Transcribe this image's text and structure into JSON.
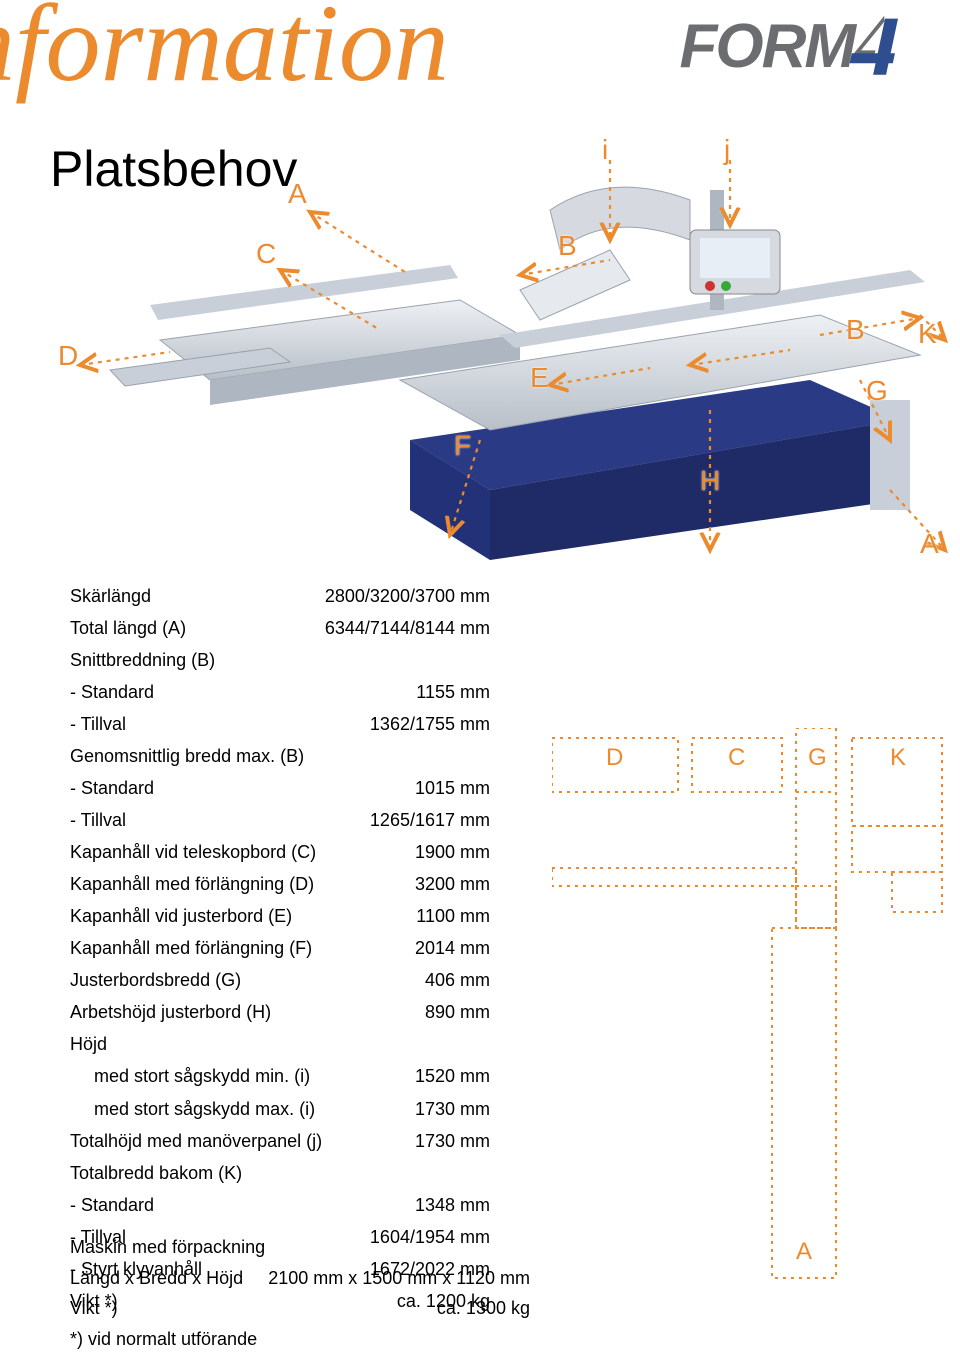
{
  "colors": {
    "accent": "#ec8a2e",
    "logo_gray": "#6b6d70",
    "logo_blue": "#2e4e8f",
    "machine_blue": "#2a3a85",
    "machine_silver": "#d6dae0"
  },
  "header": {
    "script_title": "nformation",
    "subtitle": "Platsbehov",
    "logo_text": "FORM"
  },
  "diagram_labels": {
    "A_top": "A",
    "B_top": "B",
    "C": "C",
    "D": "D",
    "E": "E",
    "F": "F",
    "G": "G",
    "H": "H",
    "K": "K",
    "i": "i",
    "j": "j",
    "A_bottom": "A",
    "B_mid": "B"
  },
  "specs": [
    {
      "label": "Skärlängd",
      "value": "2800/3200/3700 mm"
    },
    {
      "label": "Total längd (A)",
      "value": "6344/7144/8144 mm"
    },
    {
      "label": "Snittbreddning (B)",
      "value": ""
    },
    {
      "label": "- Standard",
      "value": "1155 mm"
    },
    {
      "label": "- Tillval",
      "value": "1362/1755 mm"
    },
    {
      "label": "Genomsnittlig bredd max. (B)",
      "value": ""
    },
    {
      "label": "- Standard",
      "value": "1015 mm"
    },
    {
      "label": "- Tillval",
      "value": "1265/1617 mm"
    },
    {
      "label": "Kapanhåll vid teleskopbord (C)",
      "value": "1900 mm"
    },
    {
      "label": "Kapanhåll med förlängning (D)",
      "value": "3200 mm"
    },
    {
      "label": "Kapanhåll vid justerbord (E)",
      "value": "1100 mm"
    },
    {
      "label": "Kapanhåll med förlängning (F)",
      "value": "2014 mm"
    },
    {
      "label": "Justerbordsbredd (G)",
      "value": "406 mm"
    },
    {
      "label": "Arbetshöjd justerbord (H)",
      "value": "890 mm"
    },
    {
      "label": "Höjd",
      "value": ""
    },
    {
      "label": "med stort sågskydd min. (i)",
      "value": "1520 mm",
      "indent": true
    },
    {
      "label": "med stort sågskydd max. (i)",
      "value": "1730 mm",
      "indent": true
    },
    {
      "label": "Totalhöjd med manöverpanel (j)",
      "value": "1730 mm"
    },
    {
      "label": "Totalbredd bakom (K)",
      "value": ""
    },
    {
      "label": "- Standard",
      "value": "1348 mm"
    },
    {
      "label": "- Tillval",
      "value": "1604/1954 mm"
    },
    {
      "label": "- Styrt klyvanhåll",
      "value": "1672/2022 mm"
    },
    {
      "label": "Vikt *)",
      "value": "ca. 1200 kg"
    }
  ],
  "packing": {
    "title": "Maskin med förpackning",
    "rows": [
      {
        "label": "Längd x Bredd x Höjd",
        "value": "2100 mm x 1500 mm x 1120 mm"
      },
      {
        "label": "Vikt *)",
        "value": "ca. 1300 kg"
      }
    ],
    "footnote": "*) vid normalt utförande"
  },
  "footprint": {
    "labels": {
      "D": "D",
      "C": "C",
      "G": "G",
      "K": "K",
      "A": "A"
    },
    "stroke": "#ec8a2e",
    "stroke_width": 2,
    "dash": "3 5"
  }
}
